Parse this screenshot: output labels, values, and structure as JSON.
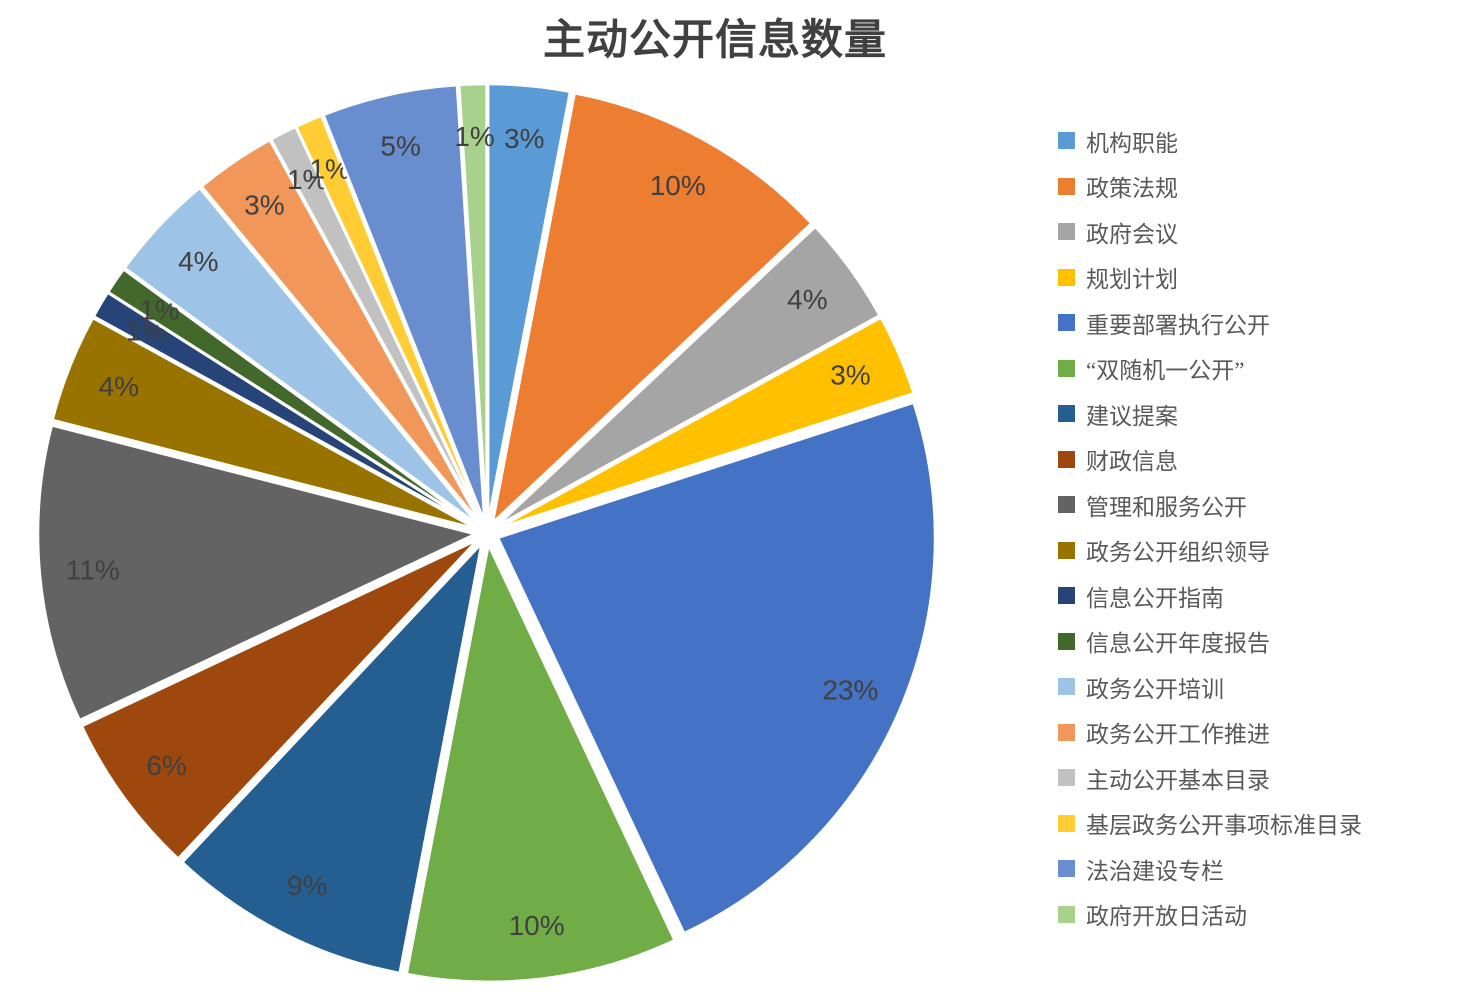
{
  "title": "主动公开信息数量",
  "chart_data": {
    "type": "pie",
    "title": "主动公开信息数量",
    "legend_position": "right",
    "start_angle_deg": 0,
    "direction": "clockwise",
    "exploded": true,
    "slices": [
      {
        "label": "机构职能",
        "value": 3,
        "value_label": "3%",
        "color": "#5B9BD5"
      },
      {
        "label": "政策法规",
        "value": 10,
        "value_label": "10%",
        "color": "#ED7D31"
      },
      {
        "label": "政府会议",
        "value": 4,
        "value_label": "4%",
        "color": "#A5A5A5"
      },
      {
        "label": "规划计划",
        "value": 3,
        "value_label": "3%",
        "color": "#FFC000"
      },
      {
        "label": "重要部署执行公开",
        "value": 23,
        "value_label": "23%",
        "color": "#4472C4"
      },
      {
        "label": "“双随机一公开”",
        "value": 10,
        "value_label": "10%",
        "color": "#70AD47"
      },
      {
        "label": "建议提案",
        "value": 9,
        "value_label": "9%",
        "color": "#255E91"
      },
      {
        "label": "财政信息",
        "value": 6,
        "value_label": "6%",
        "color": "#9E480E"
      },
      {
        "label": "管理和服务公开",
        "value": 11,
        "value_label": "11%",
        "color": "#636363"
      },
      {
        "label": "政务公开组织领导",
        "value": 4,
        "value_label": "4%",
        "color": "#997300"
      },
      {
        "label": "信息公开指南",
        "value": 1,
        "value_label": "1%",
        "color": "#264478"
      },
      {
        "label": "信息公开年度报告",
        "value": 1,
        "value_label": "1%",
        "color": "#43682B"
      },
      {
        "label": "政务公开培训",
        "value": 4,
        "value_label": "4%",
        "color": "#9DC3E6"
      },
      {
        "label": "政务公开工作推进",
        "value": 3,
        "value_label": "3%",
        "color": "#F1975A"
      },
      {
        "label": "主动公开基本目录",
        "value": 1,
        "value_label": "1%",
        "color": "#C1C1C1"
      },
      {
        "label": "基层政务公开事项标准目录",
        "value": 1,
        "value_label": "1%",
        "color": "#FFCD33"
      },
      {
        "label": "法治建设专栏",
        "value": 5,
        "value_label": "5%",
        "color": "#698ED0"
      },
      {
        "label": "政府开放日活动",
        "value": 1,
        "value_label": "1%",
        "color": "#A9D18E"
      }
    ]
  },
  "colors": {
    "title_text": "#404040",
    "label_text": "#404040",
    "legend_text": "#595959",
    "background": "#FFFFFF",
    "slice_border": "#FFFFFF"
  }
}
